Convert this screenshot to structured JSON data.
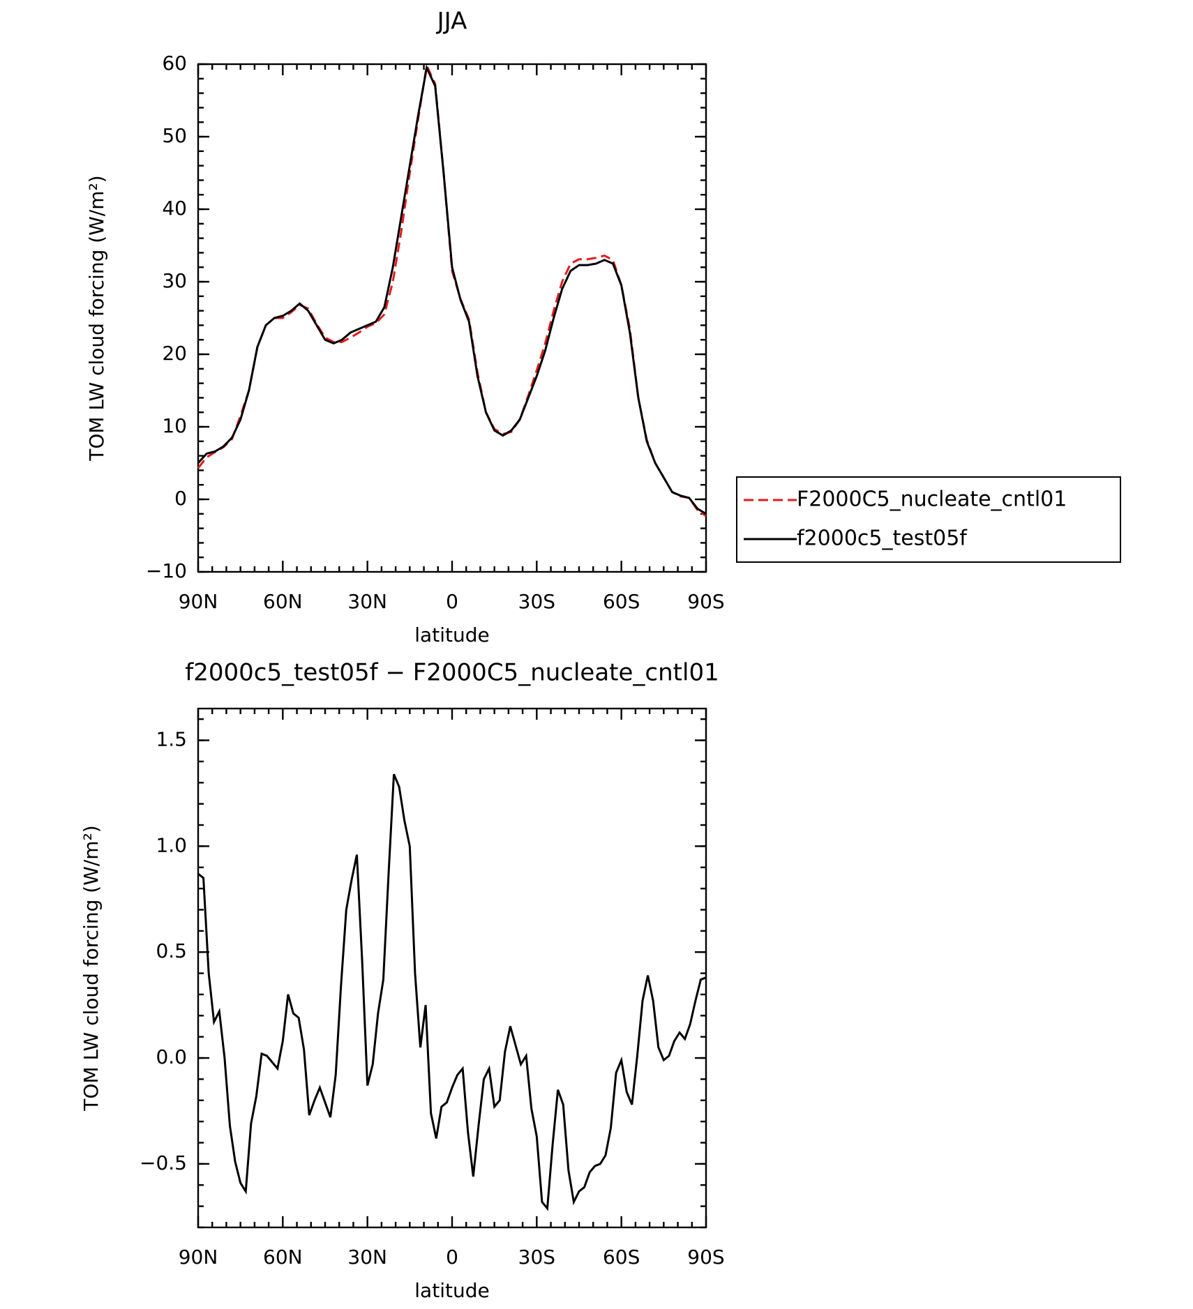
{
  "chart_data": [
    {
      "type": "line",
      "title": "JJA",
      "xlabel": "latitude",
      "ylabel": "TOM LW cloud forcing (W/m²)",
      "x": [
        90,
        87,
        84,
        81,
        78,
        75,
        72,
        69,
        66,
        63,
        60,
        57,
        54,
        51,
        48,
        45,
        42,
        39,
        36,
        33,
        30,
        27,
        24,
        21,
        18,
        15,
        12,
        9,
        6,
        3,
        0,
        -3,
        -6,
        -9,
        -12,
        -15,
        -18,
        -21,
        -24,
        -27,
        -30,
        -33,
        -36,
        -39,
        -42,
        -45,
        -48,
        -51,
        -54,
        -57,
        -60,
        -63,
        -66,
        -69,
        -72,
        -75,
        -78,
        -81,
        -84,
        -87,
        -90
      ],
      "series": [
        {
          "name": "F2000C5_nucleate_cntl01",
          "color": "#e41a1c",
          "line_style": "dashed",
          "values": [
            4.3,
            5.8,
            6.5,
            7.2,
            8.3,
            11.5,
            15,
            21,
            24,
            25,
            25,
            25.8,
            26.8,
            26.3,
            24.2,
            22.3,
            21.7,
            21.7,
            22.3,
            23,
            23.8,
            24.3,
            25.5,
            30,
            37,
            45,
            52.5,
            59.8,
            57.3,
            45,
            31.5,
            27.6,
            24.8,
            17.5,
            12,
            9.7,
            9,
            9.3,
            11,
            14.3,
            17.8,
            21.5,
            26,
            30,
            32.5,
            33.1,
            33.1,
            33.3,
            33.6,
            33,
            29.5,
            23.5,
            14,
            8.2,
            5,
            3,
            1,
            0.4,
            0.2,
            -1.5,
            -2.3
          ]
        },
        {
          "name": "f2000c5_test05f",
          "color": "#000000",
          "line_style": "solid",
          "values": [
            5,
            6.3,
            6.6,
            7.3,
            8.5,
            11,
            15,
            21,
            24,
            25,
            25.3,
            26,
            27,
            26,
            24,
            22,
            21.5,
            22,
            23,
            23.5,
            24,
            24.5,
            26.5,
            32,
            39,
            46,
            53,
            59.5,
            57,
            45,
            32,
            27.5,
            24.5,
            17,
            12,
            9.5,
            8.8,
            9.5,
            11,
            14,
            17,
            20.5,
            25,
            29,
            31.5,
            32.3,
            32.3,
            32.5,
            33,
            32.5,
            29.5,
            23,
            14,
            8,
            5,
            3,
            1,
            0.5,
            0.2,
            -1.3,
            -2
          ]
        }
      ],
      "xlim": [
        90,
        -90
      ],
      "xticks": [
        {
          "value": 90,
          "label": "90N"
        },
        {
          "value": 60,
          "label": "60N"
        },
        {
          "value": 30,
          "label": "30N"
        },
        0,
        {
          "value": -30,
          "label": "30S"
        },
        {
          "value": -60,
          "label": "60S"
        },
        {
          "value": -90,
          "label": "90S"
        }
      ],
      "ylim": [
        -10,
        60
      ],
      "yticks": [
        {
          "value": -10,
          "label": "−10"
        },
        0,
        10,
        20,
        30,
        40,
        50,
        60
      ],
      "legend": "right"
    },
    {
      "type": "line",
      "title": "f2000c5_test05f − F2000C5_nucleate_cntl01",
      "xlabel": "latitude",
      "ylabel": "TOM LW cloud forcing (W/m²)",
      "x": [
        90,
        88.125,
        86.25,
        84.375,
        82.5,
        80.625,
        78.75,
        76.875,
        75,
        73.125,
        71.25,
        69.375,
        67.5,
        65.625,
        63.75,
        61.875,
        60,
        58.125,
        56.25,
        54.375,
        52.5,
        50.625,
        48.75,
        46.875,
        45,
        43.125,
        41.25,
        39.375,
        37.5,
        35.625,
        33.75,
        31.875,
        30,
        28.125,
        26.25,
        24.375,
        22.5,
        20.625,
        18.75,
        16.875,
        15,
        13.125,
        11.25,
        9.375,
        7.5,
        5.625,
        3.75,
        1.875,
        0,
        -1.875,
        -3.75,
        -5.625,
        -7.5,
        -9.375,
        -11.25,
        -13.125,
        -15,
        -16.875,
        -18.75,
        -20.625,
        -22.5,
        -24.375,
        -26.25,
        -28.125,
        -30,
        -31.875,
        -33.75,
        -35.625,
        -37.5,
        -39.375,
        -41.25,
        -43.125,
        -45,
        -46.875,
        -48.75,
        -50.625,
        -52.5,
        -54.375,
        -56.25,
        -58.125,
        -60,
        -61.875,
        -63.75,
        -65.625,
        -67.5,
        -69.375,
        -71.25,
        -73.125,
        -75,
        -76.875,
        -78.75,
        -80.625,
        -82.5,
        -84.375,
        -86.25,
        -88.125,
        -90
      ],
      "series": [
        {
          "name": "f2000c5_test05f − F2000C5_nucleate_cntl01",
          "color": "#000000",
          "line_style": "solid",
          "values": [
            0.87,
            0.85,
            0.4,
            0.17,
            0.22,
            0,
            -0.32,
            -0.49,
            -0.59,
            -0.63,
            -0.31,
            -0.18,
            0.02,
            0.01,
            -0.02,
            -0.05,
            0.08,
            0.3,
            0.21,
            0.19,
            0.04,
            -0.27,
            -0.2,
            -0.14,
            -0.21,
            -0.28,
            -0.08,
            0.34,
            0.7,
            0.84,
            0.96,
            0.46,
            -0.13,
            -0.03,
            0.21,
            0.37,
            0.87,
            1.34,
            1.28,
            1.12,
            1,
            0.4,
            0.05,
            0.25,
            -0.26,
            -0.38,
            -0.23,
            -0.21,
            -0.14,
            -0.08,
            -0.05,
            -0.35,
            -0.56,
            -0.32,
            -0.1,
            -0.05,
            -0.23,
            -0.2,
            0.03,
            0.15,
            0.06,
            -0.03,
            0.01,
            -0.24,
            -0.37,
            -0.68,
            -0.71,
            -0.41,
            -0.15,
            -0.22,
            -0.53,
            -0.68,
            -0.63,
            -0.61,
            -0.54,
            -0.51,
            -0.5,
            -0.46,
            -0.33,
            -0.07,
            -0.01,
            -0.16,
            -0.22,
            0.01,
            0.27,
            0.39,
            0.27,
            0.05,
            -0.01,
            0.01,
            0.08,
            0.12,
            0.09,
            0.16,
            0.27,
            0.37,
            0.38
          ]
        }
      ],
      "xlim": [
        90,
        -90
      ],
      "xticks": [
        {
          "value": 90,
          "label": "90N"
        },
        {
          "value": 60,
          "label": "60N"
        },
        {
          "value": 30,
          "label": "30N"
        },
        0,
        {
          "value": -30,
          "label": "30S"
        },
        {
          "value": -60,
          "label": "60S"
        },
        {
          "value": -90,
          "label": "90S"
        }
      ],
      "ylim": [
        -0.8,
        1.65
      ],
      "yticks": [
        {
          "value": -0.5,
          "label": "−0.5"
        },
        {
          "value": 0,
          "label": "0.0"
        },
        0.5,
        {
          "value": 1,
          "label": "1.0"
        },
        1.5
      ]
    }
  ]
}
